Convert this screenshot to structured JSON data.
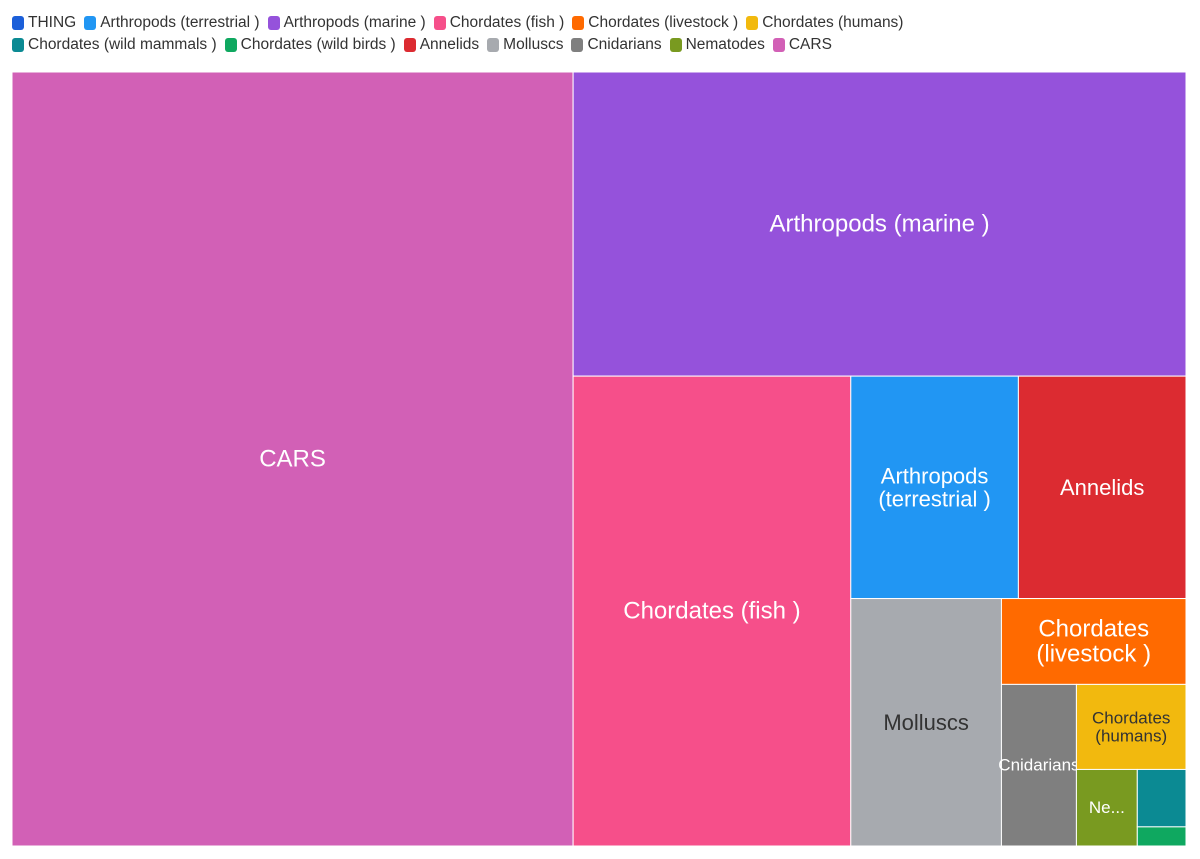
{
  "legend_rows": [
    [
      {
        "label": "THING",
        "color": "#1b5fd9"
      },
      {
        "label": "Arthropods (terrestrial )",
        "color": "#2196f3"
      },
      {
        "label": "Arthropods (marine )",
        "color": "#9552db"
      },
      {
        "label": "Chordates (fish )",
        "color": "#f64f8a"
      },
      {
        "label": "Chordates (livestock )",
        "color": "#ff6a00"
      },
      {
        "label": "Chordates (humans)",
        "color": "#f2b90e"
      }
    ],
    [
      {
        "label": "Chordates (wild mammals )",
        "color": "#0b8a93"
      },
      {
        "label": "Chordates (wild birds )",
        "color": "#0fa860"
      },
      {
        "label": "Annelids",
        "color": "#dc2b31"
      },
      {
        "label": "Molluscs",
        "color": "#a7aaaf"
      },
      {
        "label": "Cnidarians",
        "color": "#7f7f7f"
      },
      {
        "label": "Nematodes",
        "color": "#799a20"
      },
      {
        "label": "CARS",
        "color": "#d260b6"
      }
    ]
  ],
  "chart_data": {
    "type": "treemap",
    "title": "",
    "series": [
      {
        "name": "CARS",
        "value": 46.6,
        "color": "#d260b6",
        "text_color": "#ffffff",
        "label_lines": [
          "CARS"
        ]
      },
      {
        "name": "Arthropods (marine )",
        "value": 20.0,
        "color": "#9552db",
        "text_color": "#ffffff",
        "label_lines": [
          "Arthropods (marine )"
        ]
      },
      {
        "name": "Chordates (fish )",
        "value": 14.0,
        "color": "#f64f8a",
        "text_color": "#ffffff",
        "label_lines": [
          "Chordates (fish )"
        ]
      },
      {
        "name": "Arthropods (terrestrial )",
        "value": 4.0,
        "color": "#2196f3",
        "text_color": "#ffffff",
        "label_lines": [
          "Arthropods",
          "(terrestrial )"
        ]
      },
      {
        "name": "Annelids",
        "value": 4.0,
        "color": "#dc2b31",
        "text_color": "#ffffff",
        "label_lines": [
          "Annelids"
        ]
      },
      {
        "name": "Molluscs",
        "value": 4.0,
        "color": "#a7aaaf",
        "text_color": "#333333",
        "label_lines": [
          "Molluscs"
        ]
      },
      {
        "name": "Chordates (livestock )",
        "value": 1.7,
        "color": "#ff6a00",
        "text_color": "#ffffff",
        "label_lines": [
          "Chordates",
          "(livestock )"
        ]
      },
      {
        "name": "Cnidarians",
        "value": 1.3,
        "color": "#7f7f7f",
        "text_color": "#ffffff",
        "label_lines": [
          "Cnidarians"
        ]
      },
      {
        "name": "Chordates (humans)",
        "value": 1.0,
        "color": "#f2b90e",
        "text_color": "#333333",
        "label_lines": [
          "Chordates",
          "(humans)"
        ]
      },
      {
        "name": "Nematodes",
        "value": 0.5,
        "color": "#799a20",
        "text_color": "#ffffff",
        "label_lines": [
          "Ne..."
        ]
      },
      {
        "name": "Chordates (wild mammals )",
        "value": 0.3,
        "color": "#0b8a93",
        "text_color": "#ffffff",
        "label_lines": []
      },
      {
        "name": "Chordates (wild birds )",
        "value": 0.1,
        "color": "#0fa860",
        "text_color": "#ffffff",
        "label_lines": []
      }
    ],
    "legend_position": "top-left",
    "grid": false
  }
}
